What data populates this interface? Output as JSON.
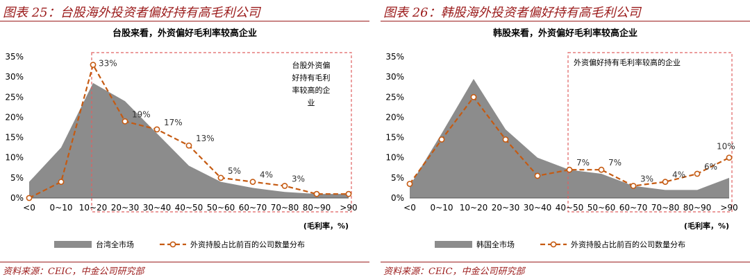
{
  "left": {
    "figure_title": "图表 25：台股海外投资者偏好持有高毛利公司",
    "source": "资料来源：CEIC，中金公司研究部"
  },
  "right": {
    "figure_title": "图表 26：韩股海外投资者偏好持有高毛利公司",
    "source": "资料来源：CEIC，中金公司研究部"
  },
  "colors": {
    "accent": "#9b1b1b",
    "area": "#8c8c8c",
    "line": "#c55a11",
    "box": "#e06060"
  },
  "chart_data": [
    {
      "type": "area",
      "title": "台股来看，外资偏好毛利率较高企业",
      "xlabel": "(毛利率，%)",
      "categories": [
        "<0",
        "0~10",
        "10~20",
        "20~30",
        "30~40",
        "40~50",
        "50~60",
        "60~70",
        "70~80",
        "80~90",
        ">90"
      ],
      "yticks": [
        "0%",
        "5%",
        "10%",
        "15%",
        "20%",
        "25%",
        "30%",
        "35%"
      ],
      "ylim": [
        0,
        35
      ],
      "series": [
        {
          "name": "台湾全市场",
          "kind": "area",
          "values": [
            4,
            12.5,
            28.5,
            24,
            16,
            8,
            4,
            2.5,
            1.5,
            1,
            1
          ]
        },
        {
          "name": "外资持股占比前百的公司数量分布",
          "kind": "line",
          "values": [
            0,
            4,
            33,
            19,
            17,
            13,
            5,
            4,
            3,
            1,
            1
          ]
        }
      ],
      "data_labels": [
        "33%",
        "19%",
        "17%",
        "13%",
        "5%",
        "4%",
        "3%"
      ],
      "data_label_index": [
        2,
        3,
        4,
        5,
        6,
        7,
        8
      ],
      "annotation": [
        "台股外资偏",
        "好持有毛利",
        "率较高的企",
        "业"
      ],
      "highlight_from_category": "10~20",
      "legend_position": "bottom"
    },
    {
      "type": "area",
      "title": "韩股来看，外资偏好毛利率较高企业",
      "xlabel": "(毛利率，%)",
      "categories": [
        "<0",
        "0~10",
        "10~20",
        "20~30",
        "30~40",
        "40~50",
        "50~60",
        "60~70",
        "70~80",
        "80~90",
        ">90"
      ],
      "yticks": [
        "0%",
        "5%",
        "10%",
        "15%",
        "20%",
        "25%",
        "30%",
        "35%"
      ],
      "ylim": [
        0,
        35
      ],
      "series": [
        {
          "name": "韩国全市场",
          "kind": "area",
          "values": [
            3,
            16,
            29.5,
            17,
            10,
            7,
            6,
            3,
            2,
            2,
            5
          ]
        },
        {
          "name": "外资持股占比前百的公司数量分布",
          "kind": "line",
          "values": [
            3.5,
            14.5,
            25,
            14.5,
            5.5,
            7,
            7,
            3,
            4,
            6,
            10
          ]
        }
      ],
      "data_labels": [
        "7%",
        "7%",
        "3%",
        "4%",
        "6%",
        "10%"
      ],
      "data_label_index": [
        5,
        6,
        7,
        8,
        9,
        10
      ],
      "annotation": [
        "外资偏好持有毛利率较高的企业"
      ],
      "highlight_from_category": "40~50",
      "legend_position": "bottom"
    }
  ]
}
